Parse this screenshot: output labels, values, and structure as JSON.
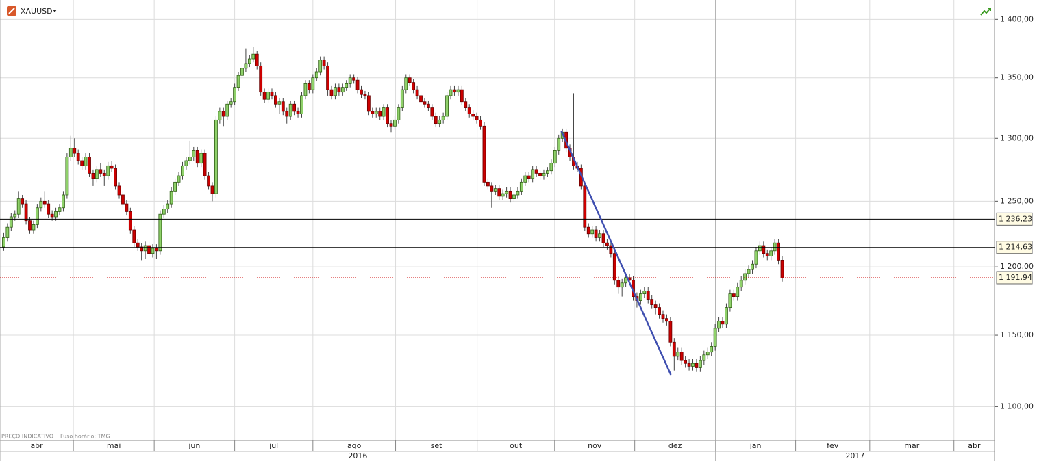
{
  "chart_data": {
    "type": "candlestick",
    "title": "XAUUSD",
    "notes": [
      "PREÇO INDICATIVO",
      "Fuso horário: TMG"
    ],
    "log_scale": true,
    "grid": true,
    "up_color": "#8fd16a",
    "down_color": "#cc0000",
    "ylim": [
      1077,
      1417
    ],
    "yticks": [
      {
        "value": 1100,
        "label": "1 100,00"
      },
      {
        "value": 1150,
        "label": "1 150,00"
      },
      {
        "value": 1200,
        "label": "1 200,00"
      },
      {
        "value": 1250,
        "label": "1 250,00"
      },
      {
        "value": 1300,
        "label": "1 300,00"
      },
      {
        "value": 1350,
        "label": "1 350,00"
      },
      {
        "value": 1400,
        "label": "1 400,00"
      }
    ],
    "xlim": [
      -1,
      266
    ],
    "xticks": [
      {
        "value": -1,
        "label": "abr"
      },
      {
        "value": 18.7,
        "label": "mai"
      },
      {
        "value": 40.4,
        "label": "jun"
      },
      {
        "value": 62,
        "label": "jul"
      },
      {
        "value": 83,
        "label": "ago"
      },
      {
        "value": 105.2,
        "label": "set"
      },
      {
        "value": 127.1,
        "label": "out"
      },
      {
        "value": 147.9,
        "label": "nov"
      },
      {
        "value": 169.4,
        "label": "dez"
      },
      {
        "value": 191.1,
        "label": "jan"
      },
      {
        "value": 212.6,
        "label": "fev"
      },
      {
        "value": 232.5,
        "label": "mar"
      },
      {
        "value": 255.1,
        "label": "abr"
      }
    ],
    "years": [
      {
        "value": -1,
        "label": "2016"
      },
      {
        "value": 191.1,
        "label": "2017"
      }
    ],
    "levels": [
      {
        "value": 1236.23,
        "label": "1 236,23",
        "color": "#000000",
        "style": "solid"
      },
      {
        "value": 1214.63,
        "label": "1 214,63",
        "color": "#000000",
        "style": "solid"
      },
      {
        "value": 1191.94,
        "label": "1 191,94",
        "color": "#cc0000",
        "style": "dotted"
      }
    ],
    "trend_line": {
      "x": [
        149.7,
        179.1
      ],
      "y": [
        1306,
        1122
      ],
      "color": "#3f4fb0"
    },
    "candles": [
      [
        1215,
        1226,
        1212,
        1222
      ],
      [
        1222,
        1233,
        1219,
        1230
      ],
      [
        1230,
        1241,
        1227,
        1238
      ],
      [
        1238,
        1243,
        1235,
        1240
      ],
      [
        1240,
        1258,
        1237,
        1252
      ],
      [
        1252,
        1255,
        1245,
        1248
      ],
      [
        1248,
        1251,
        1232,
        1235
      ],
      [
        1235,
        1238,
        1225,
        1228
      ],
      [
        1228,
        1235,
        1225,
        1232
      ],
      [
        1232,
        1248,
        1229,
        1245
      ],
      [
        1245,
        1253,
        1242,
        1250
      ],
      [
        1250,
        1258,
        1245,
        1248
      ],
      [
        1248,
        1251,
        1237,
        1240
      ],
      [
        1240,
        1243,
        1235,
        1238
      ],
      [
        1238,
        1245,
        1235,
        1242
      ],
      [
        1242,
        1248,
        1239,
        1245
      ],
      [
        1245,
        1258,
        1242,
        1255
      ],
      [
        1255,
        1288,
        1252,
        1285
      ],
      [
        1285,
        1302,
        1282,
        1292
      ],
      [
        1292,
        1300,
        1285,
        1288
      ],
      [
        1288,
        1291,
        1279,
        1282
      ],
      [
        1282,
        1285,
        1275,
        1278
      ],
      [
        1278,
        1288,
        1275,
        1285
      ],
      [
        1285,
        1288,
        1269,
        1272
      ],
      [
        1272,
        1275,
        1262,
        1268
      ],
      [
        1268,
        1278,
        1265,
        1275
      ],
      [
        1275,
        1280,
        1269,
        1272
      ],
      [
        1272,
        1275,
        1262,
        1270
      ],
      [
        1270,
        1281,
        1267,
        1278
      ],
      [
        1278,
        1282,
        1273,
        1276
      ],
      [
        1276,
        1279,
        1259,
        1262
      ],
      [
        1262,
        1265,
        1252,
        1255
      ],
      [
        1255,
        1258,
        1245,
        1248
      ],
      [
        1248,
        1251,
        1239,
        1242
      ],
      [
        1242,
        1245,
        1225,
        1228
      ],
      [
        1228,
        1231,
        1215,
        1218
      ],
      [
        1218,
        1221,
        1212,
        1215
      ],
      [
        1215,
        1218,
        1205,
        1212
      ],
      [
        1212,
        1219,
        1206,
        1216
      ],
      [
        1216,
        1219,
        1207,
        1210
      ],
      [
        1210,
        1217,
        1207,
        1214
      ],
      [
        1214,
        1217,
        1206,
        1212
      ],
      [
        1212,
        1243,
        1209,
        1240
      ],
      [
        1240,
        1247,
        1237,
        1244
      ],
      [
        1244,
        1251,
        1241,
        1248
      ],
      [
        1248,
        1261,
        1245,
        1258
      ],
      [
        1258,
        1268,
        1255,
        1265
      ],
      [
        1265,
        1273,
        1262,
        1270
      ],
      [
        1270,
        1281,
        1267,
        1278
      ],
      [
        1278,
        1285,
        1275,
        1282
      ],
      [
        1282,
        1298,
        1279,
        1285
      ],
      [
        1285,
        1293,
        1282,
        1290
      ],
      [
        1290,
        1293,
        1277,
        1280
      ],
      [
        1280,
        1291,
        1277,
        1288
      ],
      [
        1288,
        1291,
        1267,
        1270
      ],
      [
        1270,
        1273,
        1259,
        1262
      ],
      [
        1262,
        1265,
        1250,
        1256
      ],
      [
        1256,
        1318,
        1253,
        1315
      ],
      [
        1315,
        1325,
        1312,
        1322
      ],
      [
        1322,
        1325,
        1310,
        1318
      ],
      [
        1318,
        1331,
        1315,
        1328
      ],
      [
        1328,
        1333,
        1325,
        1330
      ],
      [
        1330,
        1345,
        1327,
        1342
      ],
      [
        1342,
        1355,
        1339,
        1352
      ],
      [
        1352,
        1361,
        1349,
        1358
      ],
      [
        1358,
        1375,
        1355,
        1362
      ],
      [
        1362,
        1369,
        1359,
        1366
      ],
      [
        1366,
        1376,
        1363,
        1370
      ],
      [
        1370,
        1373,
        1357,
        1360
      ],
      [
        1360,
        1363,
        1335,
        1338
      ],
      [
        1338,
        1341,
        1329,
        1332
      ],
      [
        1332,
        1341,
        1329,
        1338
      ],
      [
        1338,
        1341,
        1332,
        1335
      ],
      [
        1335,
        1338,
        1325,
        1328
      ],
      [
        1328,
        1333,
        1320,
        1330
      ],
      [
        1330,
        1333,
        1319,
        1322
      ],
      [
        1322,
        1325,
        1312,
        1318
      ],
      [
        1318,
        1331,
        1315,
        1328
      ],
      [
        1328,
        1331,
        1319,
        1322
      ],
      [
        1322,
        1325,
        1317,
        1320
      ],
      [
        1320,
        1338,
        1317,
        1335
      ],
      [
        1335,
        1348,
        1332,
        1345
      ],
      [
        1345,
        1348,
        1337,
        1340
      ],
      [
        1340,
        1353,
        1337,
        1350
      ],
      [
        1350,
        1358,
        1347,
        1355
      ],
      [
        1355,
        1368,
        1352,
        1365
      ],
      [
        1365,
        1368,
        1357,
        1360
      ],
      [
        1360,
        1363,
        1335,
        1340
      ],
      [
        1340,
        1343,
        1332,
        1335
      ],
      [
        1335,
        1345,
        1332,
        1342
      ],
      [
        1342,
        1345,
        1335,
        1338
      ],
      [
        1338,
        1345,
        1335,
        1342
      ],
      [
        1342,
        1348,
        1339,
        1345
      ],
      [
        1345,
        1353,
        1342,
        1350
      ],
      [
        1350,
        1353,
        1345,
        1348
      ],
      [
        1348,
        1351,
        1337,
        1340
      ],
      [
        1340,
        1343,
        1333,
        1336
      ],
      [
        1336,
        1339,
        1332,
        1335
      ],
      [
        1335,
        1338,
        1319,
        1322
      ],
      [
        1322,
        1325,
        1317,
        1320
      ],
      [
        1320,
        1325,
        1317,
        1322
      ],
      [
        1322,
        1325,
        1315,
        1318
      ],
      [
        1318,
        1328,
        1315,
        1325
      ],
      [
        1325,
        1328,
        1309,
        1312
      ],
      [
        1312,
        1315,
        1305,
        1310
      ],
      [
        1310,
        1318,
        1307,
        1315
      ],
      [
        1315,
        1328,
        1312,
        1325
      ],
      [
        1325,
        1343,
        1322,
        1340
      ],
      [
        1340,
        1353,
        1337,
        1350
      ],
      [
        1350,
        1353,
        1343,
        1346
      ],
      [
        1346,
        1349,
        1337,
        1340
      ],
      [
        1340,
        1343,
        1332,
        1335
      ],
      [
        1335,
        1338,
        1327,
        1330
      ],
      [
        1330,
        1333,
        1325,
        1328
      ],
      [
        1328,
        1331,
        1322,
        1325
      ],
      [
        1325,
        1328,
        1315,
        1318
      ],
      [
        1318,
        1321,
        1309,
        1312
      ],
      [
        1312,
        1318,
        1309,
        1315
      ],
      [
        1315,
        1321,
        1312,
        1318
      ],
      [
        1318,
        1338,
        1315,
        1335
      ],
      [
        1335,
        1343,
        1332,
        1340
      ],
      [
        1340,
        1343,
        1335,
        1338
      ],
      [
        1338,
        1343,
        1335,
        1340
      ],
      [
        1340,
        1343,
        1327,
        1330
      ],
      [
        1330,
        1333,
        1322,
        1325
      ],
      [
        1325,
        1328,
        1317,
        1320
      ],
      [
        1320,
        1323,
        1315,
        1318
      ],
      [
        1318,
        1321,
        1312,
        1315
      ],
      [
        1315,
        1318,
        1307,
        1310
      ],
      [
        1310,
        1313,
        1262,
        1265
      ],
      [
        1265,
        1268,
        1259,
        1262
      ],
      [
        1262,
        1265,
        1245,
        1258
      ],
      [
        1258,
        1263,
        1255,
        1260
      ],
      [
        1260,
        1263,
        1251,
        1254
      ],
      [
        1254,
        1259,
        1251,
        1256
      ],
      [
        1256,
        1261,
        1253,
        1258
      ],
      [
        1258,
        1261,
        1249,
        1252
      ],
      [
        1252,
        1258,
        1249,
        1255
      ],
      [
        1255,
        1261,
        1252,
        1258
      ],
      [
        1258,
        1268,
        1255,
        1265
      ],
      [
        1265,
        1273,
        1262,
        1270
      ],
      [
        1270,
        1273,
        1265,
        1268
      ],
      [
        1268,
        1278,
        1265,
        1275
      ],
      [
        1275,
        1278,
        1269,
        1272
      ],
      [
        1272,
        1275,
        1267,
        1270
      ],
      [
        1270,
        1275,
        1267,
        1272
      ],
      [
        1272,
        1277,
        1269,
        1274
      ],
      [
        1274,
        1283,
        1271,
        1280
      ],
      [
        1280,
        1293,
        1277,
        1290
      ],
      [
        1290,
        1303,
        1287,
        1300
      ],
      [
        1300,
        1308,
        1297,
        1305
      ],
      [
        1305,
        1308,
        1289,
        1292
      ],
      [
        1292,
        1295,
        1282,
        1285
      ],
      [
        1285,
        1337,
        1275,
        1278
      ],
      [
        1278,
        1281,
        1273,
        1276
      ],
      [
        1276,
        1279,
        1259,
        1262
      ],
      [
        1262,
        1265,
        1227,
        1230
      ],
      [
        1230,
        1233,
        1222,
        1225
      ],
      [
        1225,
        1231,
        1222,
        1228
      ],
      [
        1228,
        1231,
        1219,
        1222
      ],
      [
        1222,
        1228,
        1219,
        1225
      ],
      [
        1225,
        1228,
        1215,
        1218
      ],
      [
        1218,
        1221,
        1213,
        1216
      ],
      [
        1216,
        1219,
        1207,
        1210
      ],
      [
        1210,
        1213,
        1187,
        1190
      ],
      [
        1190,
        1193,
        1180,
        1185
      ],
      [
        1185,
        1191,
        1178,
        1188
      ],
      [
        1188,
        1195,
        1185,
        1192
      ],
      [
        1192,
        1195,
        1187,
        1190
      ],
      [
        1190,
        1193,
        1175,
        1178
      ],
      [
        1178,
        1181,
        1170,
        1175
      ],
      [
        1175,
        1183,
        1172,
        1180
      ],
      [
        1180,
        1185,
        1177,
        1182
      ],
      [
        1182,
        1185,
        1173,
        1176
      ],
      [
        1176,
        1179,
        1169,
        1172
      ],
      [
        1172,
        1175,
        1165,
        1170
      ],
      [
        1170,
        1173,
        1162,
        1165
      ],
      [
        1165,
        1168,
        1159,
        1162
      ],
      [
        1162,
        1165,
        1157,
        1160
      ],
      [
        1160,
        1163,
        1142,
        1145
      ],
      [
        1145,
        1148,
        1125,
        1135
      ],
      [
        1135,
        1141,
        1132,
        1138
      ],
      [
        1138,
        1141,
        1129,
        1132
      ],
      [
        1132,
        1135,
        1127,
        1130
      ],
      [
        1130,
        1133,
        1125,
        1128
      ],
      [
        1128,
        1133,
        1125,
        1130
      ],
      [
        1130,
        1133,
        1124,
        1127
      ],
      [
        1127,
        1135,
        1124,
        1132
      ],
      [
        1132,
        1139,
        1129,
        1136
      ],
      [
        1136,
        1141,
        1133,
        1138
      ],
      [
        1138,
        1145,
        1135,
        1142
      ],
      [
        1142,
        1158,
        1139,
        1155
      ],
      [
        1155,
        1163,
        1152,
        1160
      ],
      [
        1160,
        1163,
        1155,
        1158
      ],
      [
        1158,
        1173,
        1155,
        1170
      ],
      [
        1170,
        1183,
        1167,
        1180
      ],
      [
        1180,
        1183,
        1175,
        1178
      ],
      [
        1178,
        1188,
        1175,
        1185
      ],
      [
        1185,
        1193,
        1182,
        1190
      ],
      [
        1190,
        1198,
        1187,
        1195
      ],
      [
        1195,
        1201,
        1192,
        1198
      ],
      [
        1198,
        1205,
        1195,
        1202
      ],
      [
        1202,
        1215,
        1199,
        1212
      ],
      [
        1212,
        1219,
        1209,
        1216
      ],
      [
        1216,
        1219,
        1207,
        1210
      ],
      [
        1210,
        1213,
        1205,
        1208
      ],
      [
        1208,
        1215,
        1205,
        1212
      ],
      [
        1212,
        1221,
        1209,
        1218
      ],
      [
        1218,
        1221,
        1202,
        1205
      ],
      [
        1205,
        1208,
        1189,
        1191.94
      ]
    ]
  }
}
